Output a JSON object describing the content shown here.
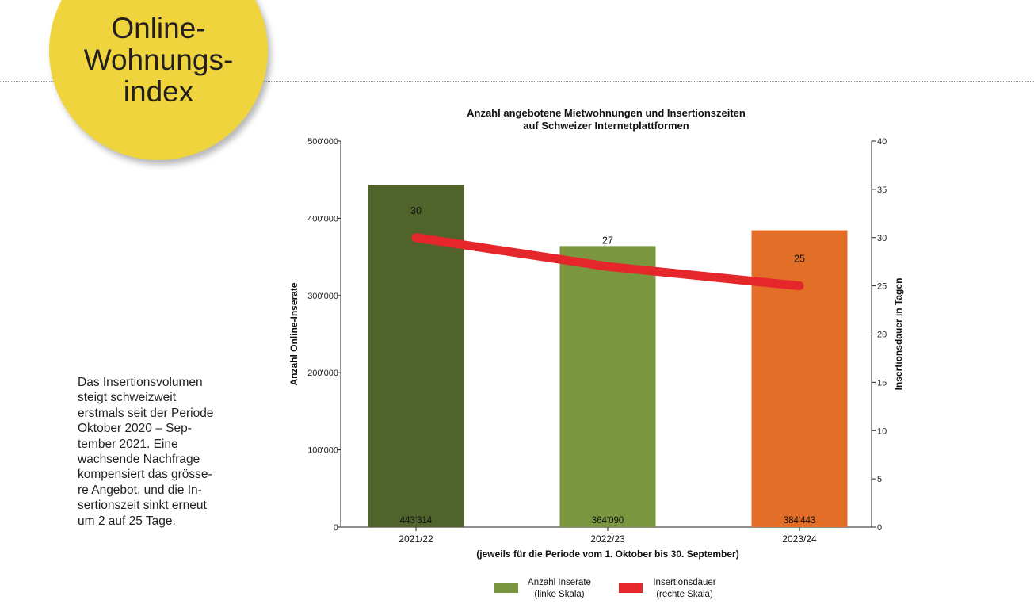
{
  "badge": {
    "lines": [
      "Online-",
      "Wohnungs-",
      "index"
    ]
  },
  "description": {
    "lines": [
      "Das Insertionsvolumen",
      "steigt schweizweit",
      "erstmals seit der Periode",
      "Oktober 2020 – Sep-",
      "tember 2021. Eine",
      "wachsende Nachfrage",
      "kompensiert das grösse-",
      "re Angebot, und die In-",
      "sertionszeit sinkt erneut",
      "um 2 auf 25 Tage."
    ]
  },
  "colors": {
    "badge": "#efd43e",
    "bar_dark": "#4f632b",
    "bar_mid": "#7a9740",
    "bar_orange": "#e26e28",
    "line": "#e5262a"
  },
  "chart_data": {
    "type": "bar",
    "title": "Anzahl angebotene Mietwohnungen und Insertionszeiten",
    "subtitle": "auf Schweizer Internetplattformen",
    "categories": [
      "2021/22",
      "2022/23",
      "2023/24"
    ],
    "xlabel": "(jeweils für die Periode vom 1. Oktober bis 30. September)",
    "ylabel": "Anzahl Online-Inserate",
    "y2label": "Insertionsdauer in Tagen",
    "ylim": [
      0,
      500000
    ],
    "y2lim": [
      0,
      40
    ],
    "yticks": [
      0,
      100000,
      200000,
      300000,
      400000,
      500000
    ],
    "ytick_labels": [
      "0",
      "100'000",
      "200'000",
      "300'000",
      "400'000",
      "500'000"
    ],
    "y2ticks": [
      0,
      5,
      10,
      15,
      20,
      25,
      30,
      35,
      40
    ],
    "y2tick_labels": [
      "0",
      "5",
      "10",
      "15",
      "20",
      "25",
      "30",
      "35",
      "40"
    ],
    "series": [
      {
        "name": "Anzahl Inserate",
        "kind": "bar",
        "axis": "left",
        "values": [
          443314,
          364090,
          384443
        ],
        "labels": [
          "443'314",
          "364'090",
          "384'443"
        ],
        "colors": [
          "#4f632b",
          "#7a9740",
          "#e26e28"
        ]
      },
      {
        "name": "Insertionsdauer",
        "kind": "line",
        "axis": "right",
        "values": [
          30,
          27,
          25
        ],
        "labels": [
          "30",
          "27",
          "25"
        ],
        "color": "#e5262a"
      }
    ],
    "legend": [
      {
        "line1": "Anzahl Inserate",
        "line2": "(linke Skala)",
        "color": "#7a9740"
      },
      {
        "line1": "Insertionsdauer",
        "line2": "(rechte Skala)",
        "color": "#e5262a"
      }
    ],
    "legend_position": "bottom-center",
    "grid": false
  }
}
